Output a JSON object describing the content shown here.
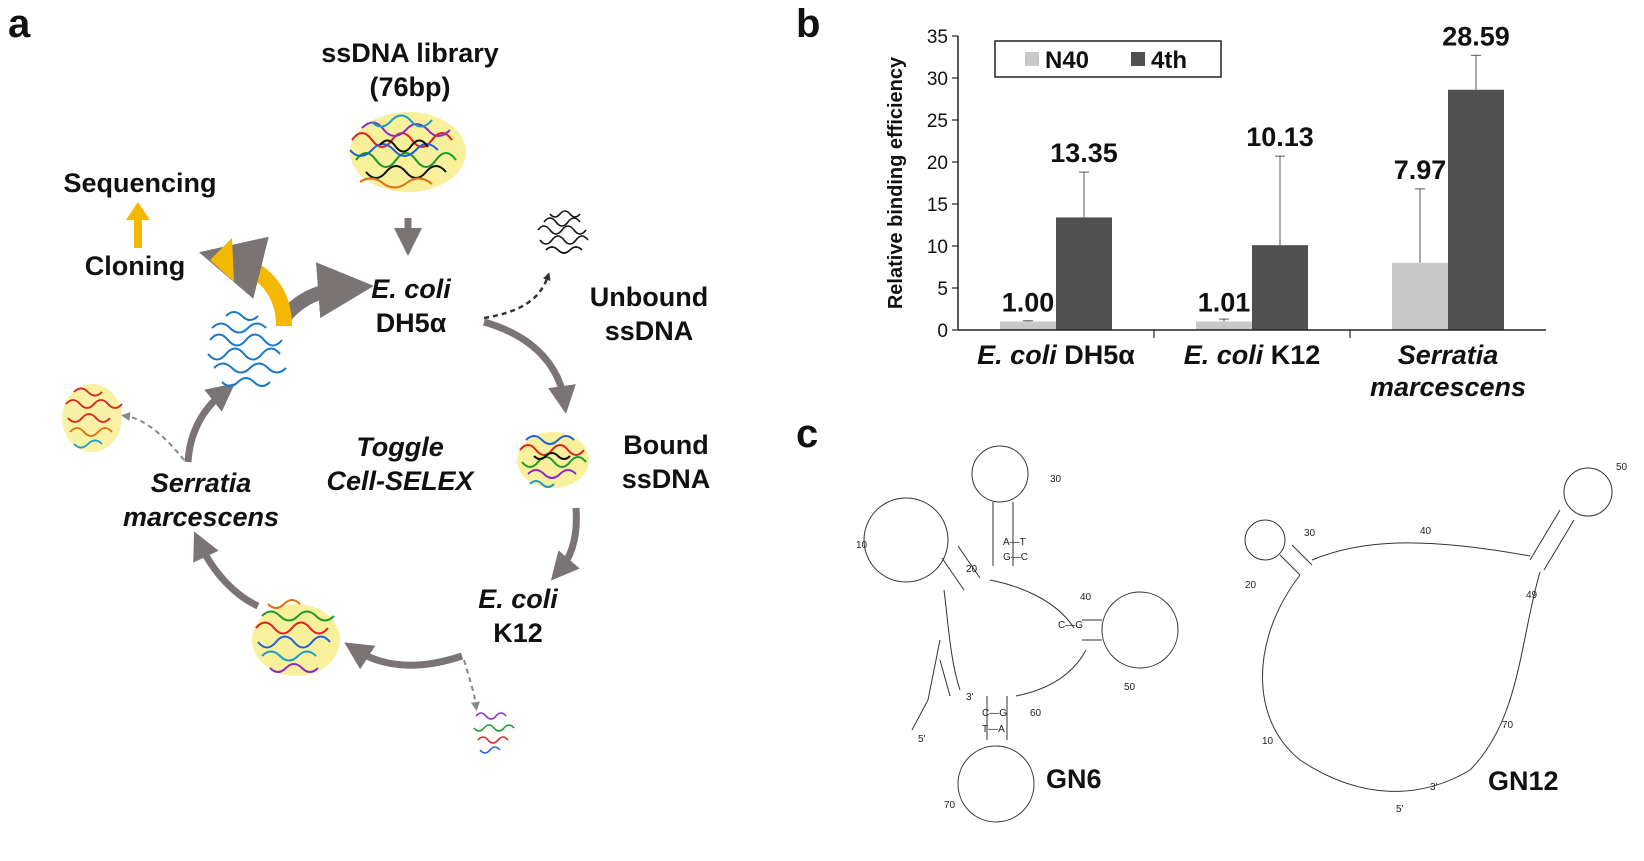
{
  "panels": {
    "a": "a",
    "b": "b",
    "c": "c"
  },
  "cycle": {
    "library_line1": "ssDNA library",
    "library_line2": "(76bp)",
    "sequencing": "Sequencing",
    "cloning": "Cloning",
    "dh5a_italic": "E. coli",
    "dh5a_plain": "DH5α",
    "unbound_line1": "Unbound",
    "unbound_line2": "ssDNA",
    "bound_line1": "Bound",
    "bound_line2": "ssDNA",
    "k12_italic": "E. coli",
    "k12_plain": "K12",
    "serratia_line1": "Serratia",
    "serratia_line2": "marcescens",
    "center_line1": "Toggle",
    "center_line2": "Cell-SELEX"
  },
  "colors": {
    "arrow_gray": "#7a7474",
    "arrow_yellow": "#f5b800",
    "bar_light": "#c8c8c8",
    "bar_dark": "#505050"
  },
  "chart_data": {
    "type": "bar",
    "ylabel": "Relative binding efficiency",
    "ylim": [
      0,
      35
    ],
    "yticks": [
      "0",
      "5",
      "10",
      "15",
      "20",
      "25",
      "30",
      "35"
    ],
    "categories": [
      {
        "italic": "E. coli",
        "plain": " DH5α"
      },
      {
        "italic": "E. coli",
        "plain": " K12"
      },
      {
        "italic": "Serratia",
        "plain": "",
        "line2": "marcescens"
      }
    ],
    "series": [
      {
        "name": "N40",
        "color": "#c8c8c8",
        "values": [
          1.0,
          1.0,
          8.0
        ],
        "errors": [
          0.1,
          0.3,
          8.8
        ],
        "labels": [
          "1.00",
          "1.01",
          "7.97"
        ]
      },
      {
        "name": "4th",
        "color": "#505050",
        "values": [
          13.4,
          10.1,
          28.6
        ],
        "errors": [
          5.4,
          10.6,
          4.1
        ],
        "labels": [
          "13.35",
          "10.13",
          "28.59"
        ]
      }
    ],
    "legend_position": "top-left"
  },
  "structures": {
    "gn6": {
      "name": "GN6",
      "prime5": "5'",
      "prime3": "3'",
      "nums": [
        "10",
        "20",
        "30",
        "40",
        "50",
        "60",
        "70"
      ]
    },
    "gn12": {
      "name": "GN12",
      "prime5": "5'",
      "prime3": "3'",
      "nums": [
        "10",
        "20",
        "30",
        "40",
        "49",
        "50",
        "70"
      ]
    }
  }
}
